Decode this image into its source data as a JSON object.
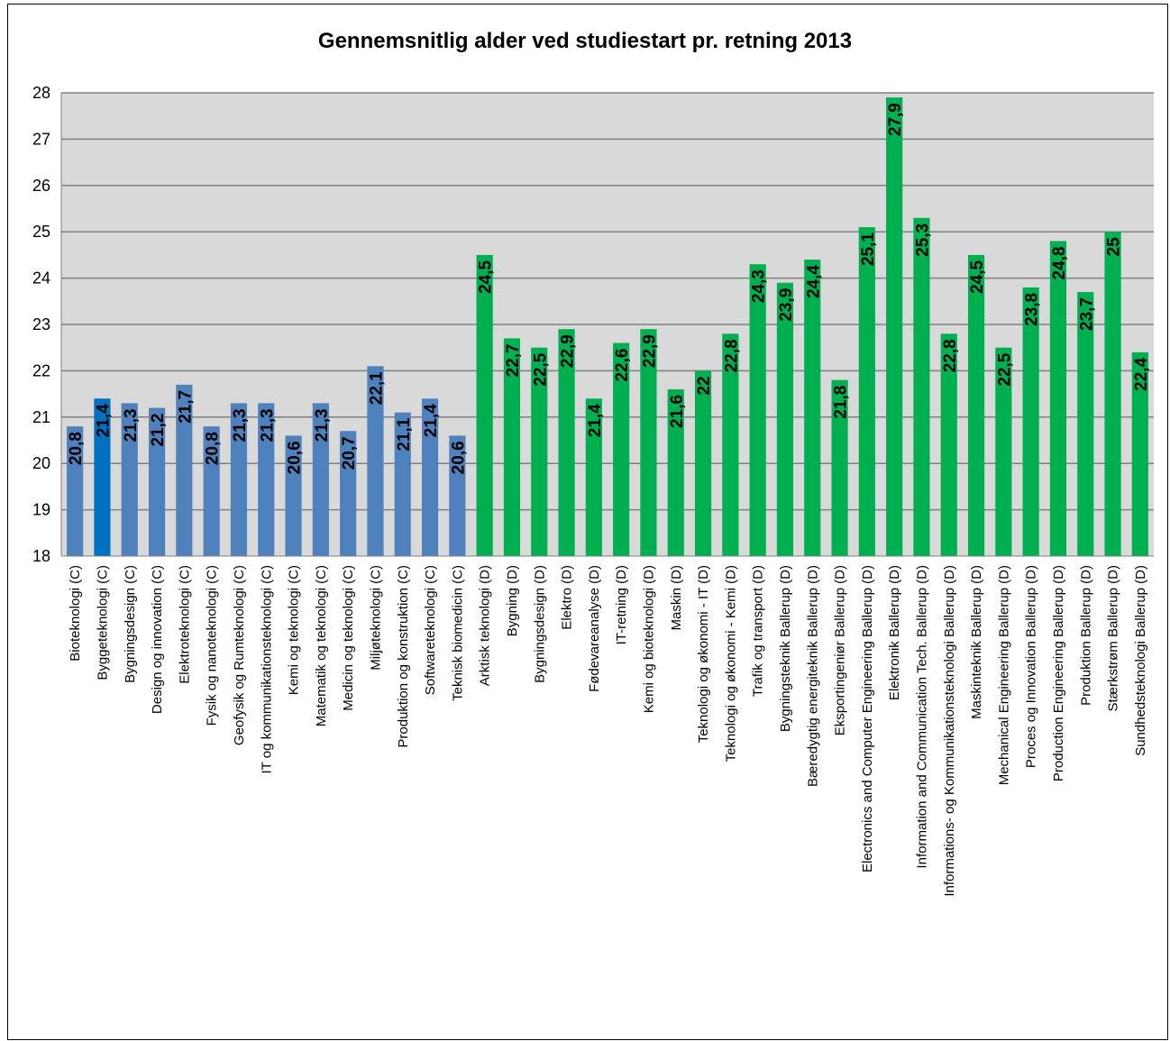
{
  "chart_data": {
    "type": "bar",
    "title": "Gennemsnitlig alder ved studiestart pr. retning 2013",
    "xlabel": "",
    "ylabel": "",
    "ylim": [
      18,
      28
    ],
    "yticks": [
      "18",
      "19",
      "20",
      "21",
      "22",
      "23",
      "24",
      "25",
      "26",
      "27",
      "28"
    ],
    "grid": true,
    "legend": "none",
    "colors": {
      "C": "#4f81bd",
      "C_highlight": "#0070c0",
      "D": "#00b050",
      "plot_bg": "#d9d9d9"
    },
    "categories": [
      "Bioteknologi (C)",
      "Byggeteknologi (C)",
      "Bygningsdesign (C)",
      "Design og innovation (C)",
      "Elektroteknologi (C)",
      "Fysik og nanoteknologi (C)",
      "Geofysik og Rumteknologi (C)",
      "IT og kommunikationsteknologi (C)",
      "Kemi og teknologi (C)",
      "Matematik og teknologi (C)",
      "Medicin og teknologi (C)",
      "Miljøteknologi (C)",
      "Produktion og konstruktion (C)",
      "Softwareteknologi (C)",
      "Teknisk biomedicin (C)",
      "Arktisk teknologi (D)",
      "Bygning (D)",
      "Bygningsdesign (D)",
      "Elektro (D)",
      "Fødevareanalyse (D)",
      "IT-retning (D)",
      "Kemi og bioteknologi (D)",
      "Maskin (D)",
      "Teknologi og økonomi - IT (D)",
      "Teknologi og økonomi - Kemi (D)",
      "Trafik og transport (D)",
      "Bygningsteknik Ballerup (D)",
      "Bæredygtig energiteknik Ballerup (D)",
      "Eksportingeniør Ballerup (D)",
      "Electronics and Computer Engineering Ballerup (D)",
      "Elektronik Ballerup (D)",
      "Information and Communication Tech. Ballerup (D)",
      "Informations- og Kommunikationsteknologi Ballerup (D)",
      "Maskinteknik Ballerup (D)",
      "Mechanical Engineering Ballerup (D)",
      "Proces og Innovation Ballerup (D)",
      "Production Engineering Ballerup (D)",
      "Produktion Ballerup (D)",
      "Stærkstrøm Ballerup (D)",
      "Sundhedsteknologi Ballerup (D)"
    ],
    "values": [
      20.8,
      21.4,
      21.3,
      21.2,
      21.7,
      20.8,
      21.3,
      21.3,
      20.6,
      21.3,
      20.7,
      22.1,
      21.1,
      21.4,
      20.6,
      24.5,
      22.7,
      22.5,
      22.9,
      21.4,
      22.6,
      22.9,
      21.6,
      22,
      22.8,
      24.3,
      23.9,
      24.4,
      21.8,
      25.1,
      27.9,
      25.3,
      22.8,
      24.5,
      22.5,
      23.8,
      24.8,
      23.7,
      25,
      22.4
    ],
    "data_labels": [
      "20,8",
      "21,4",
      "21,3",
      "21,2",
      "21,7",
      "20,8",
      "21,3",
      "21,3",
      "20,6",
      "21,3",
      "20,7",
      "22,1",
      "21,1",
      "21,4",
      "20,6",
      "24,5",
      "22,7",
      "22,5",
      "22,9",
      "21,4",
      "22,6",
      "22,9",
      "21,6",
      "22",
      "22,8",
      "24,3",
      "23,9",
      "24,4",
      "21,8",
      "25,1",
      "27,9",
      "25,3",
      "22,8",
      "24,5",
      "22,5",
      "23,8",
      "24,8",
      "23,7",
      "25",
      "22,4"
    ],
    "groups": [
      "C",
      "C",
      "C",
      "C",
      "C",
      "C",
      "C",
      "C",
      "C",
      "C",
      "C",
      "C",
      "C",
      "C",
      "C",
      "D",
      "D",
      "D",
      "D",
      "D",
      "D",
      "D",
      "D",
      "D",
      "D",
      "D",
      "D",
      "D",
      "D",
      "D",
      "D",
      "D",
      "D",
      "D",
      "D",
      "D",
      "D",
      "D",
      "D",
      "D"
    ],
    "highlight_index": 1
  }
}
